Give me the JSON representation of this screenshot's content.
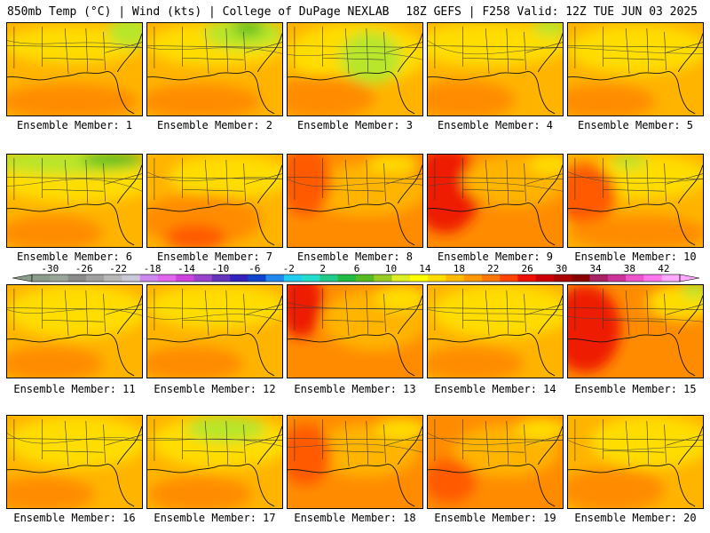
{
  "header": {
    "left": "850mb Temp (°C) | Wind (kts) | College of DuPage NEXLAB",
    "right": "18Z GEFS | F258 Valid: 12Z TUE JUN 03 2025"
  },
  "colorbar": {
    "ticks": [
      "-30",
      "-26",
      "-22",
      "-18",
      "-14",
      "-10",
      "-6",
      "-2",
      "2",
      "6",
      "10",
      "14",
      "18",
      "22",
      "26",
      "30",
      "34",
      "38",
      "42"
    ],
    "colors": [
      "#8c9c8c",
      "#9aa59a",
      "#8a8a8a",
      "#a0a0a0",
      "#b8b8b8",
      "#c8c8d8",
      "#cc88ee",
      "#e066ee",
      "#cc44dd",
      "#9944cc",
      "#6633bb",
      "#3322bb",
      "#1144cc",
      "#2288ee",
      "#22ccee",
      "#22ddcc",
      "#22cc88",
      "#22bb44",
      "#55bb22",
      "#99cc22",
      "#ddee22",
      "#ffff00",
      "#ffdd00",
      "#ffbb00",
      "#ff9900",
      "#ff7700",
      "#ff4400",
      "#ee1100",
      "#cc0000",
      "#aa0000",
      "#880000",
      "#aa2266",
      "#cc3399",
      "#ee55cc",
      "#ff77ee",
      "#ffaaff"
    ]
  },
  "members": [
    {
      "label": "Ensemble Member: 1"
    },
    {
      "label": "Ensemble Member: 2"
    },
    {
      "label": "Ensemble Member: 3"
    },
    {
      "label": "Ensemble Member: 4"
    },
    {
      "label": "Ensemble Member: 5"
    },
    {
      "label": "Ensemble Member: 6"
    },
    {
      "label": "Ensemble Member: 7"
    },
    {
      "label": "Ensemble Member: 8"
    },
    {
      "label": "Ensemble Member: 9"
    },
    {
      "label": "Ensemble Member: 10"
    },
    {
      "label": "Ensemble Member: 11"
    },
    {
      "label": "Ensemble Member: 12"
    },
    {
      "label": "Ensemble Member: 13"
    },
    {
      "label": "Ensemble Member: 14"
    },
    {
      "label": "Ensemble Member: 15"
    },
    {
      "label": "Ensemble Member: 16"
    },
    {
      "label": "Ensemble Member: 17"
    },
    {
      "label": "Ensemble Member: 18"
    },
    {
      "label": "Ensemble Member: 19"
    },
    {
      "label": "Ensemble Member: 20"
    }
  ],
  "palette": {
    "yellow": "#ffff00",
    "gold": "#ffdd00",
    "orange": "#ffb400",
    "dark_orange": "#ff8c00",
    "red_orange": "#ff5a00",
    "red": "#ee1a00",
    "light_green": "#b8e62a",
    "green": "#55bb22"
  }
}
